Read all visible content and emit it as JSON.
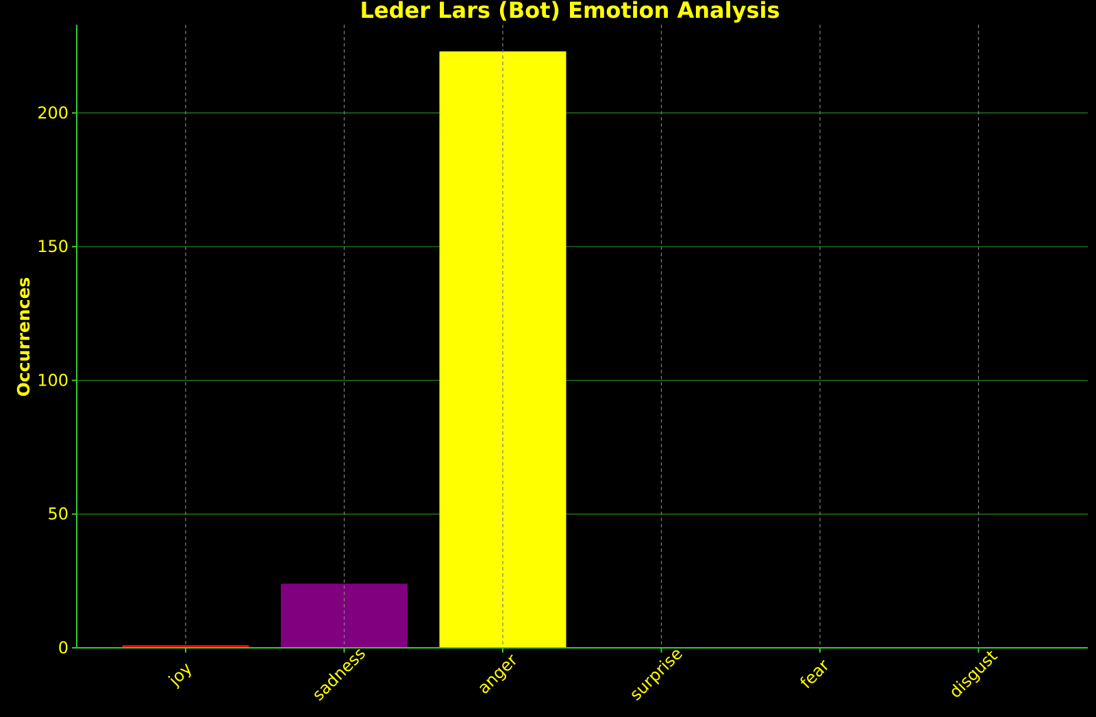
{
  "chart_data": {
    "type": "bar",
    "title": "Leder Lars (Bot) Emotion Analysis",
    "xlabel": "",
    "ylabel": "Occurrences",
    "categories": [
      "joy",
      "sadness",
      "anger",
      "surprise",
      "fear",
      "disgust"
    ],
    "values": [
      1,
      24,
      223,
      0,
      0,
      0
    ],
    "bar_colors": [
      "#ff0000",
      "#800080",
      "#ffff00",
      "#00ffff",
      "#ff8800",
      "#00ff00"
    ],
    "ylim": [
      0,
      233
    ],
    "yticks": [
      0,
      50,
      100,
      150,
      200
    ],
    "grid": true,
    "legend": "none"
  },
  "colors": {
    "background": "#000000",
    "text": "#ffff00",
    "axis": "#32cd32",
    "horizontal_grid": "#228b22",
    "vertical_grid": "#808080"
  }
}
